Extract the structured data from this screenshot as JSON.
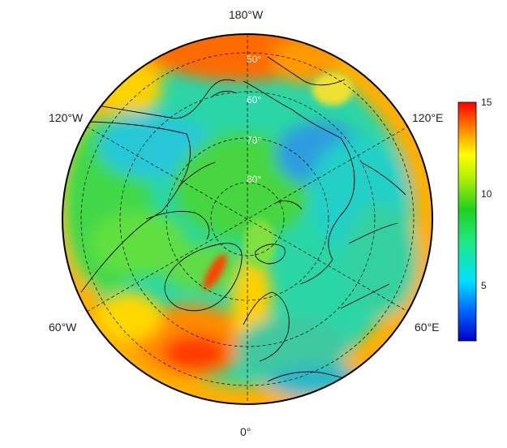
{
  "map": {
    "projection": "north polar stereographic",
    "colormap": "jet",
    "longitude_labels": {
      "top": "180°W",
      "upper_left": "120°W",
      "upper_right": "120°E",
      "lower_left": "60°W",
      "lower_right": "60°E",
      "bottom": "0°"
    },
    "latitude_labels": [
      "50°",
      "60°",
      "70°",
      "80°"
    ],
    "colorbar": {
      "min": 2,
      "max": 15,
      "ticks": [
        5,
        10,
        15
      ],
      "tick_labels": [
        "5",
        "10",
        "15"
      ]
    },
    "colors": {
      "ocean_cyan": "#24d6b0",
      "land_green": "#3ccf3c",
      "hot_red": "#ff3000",
      "cold_blue": "#2f8fe0",
      "coast": "#000000"
    }
  }
}
